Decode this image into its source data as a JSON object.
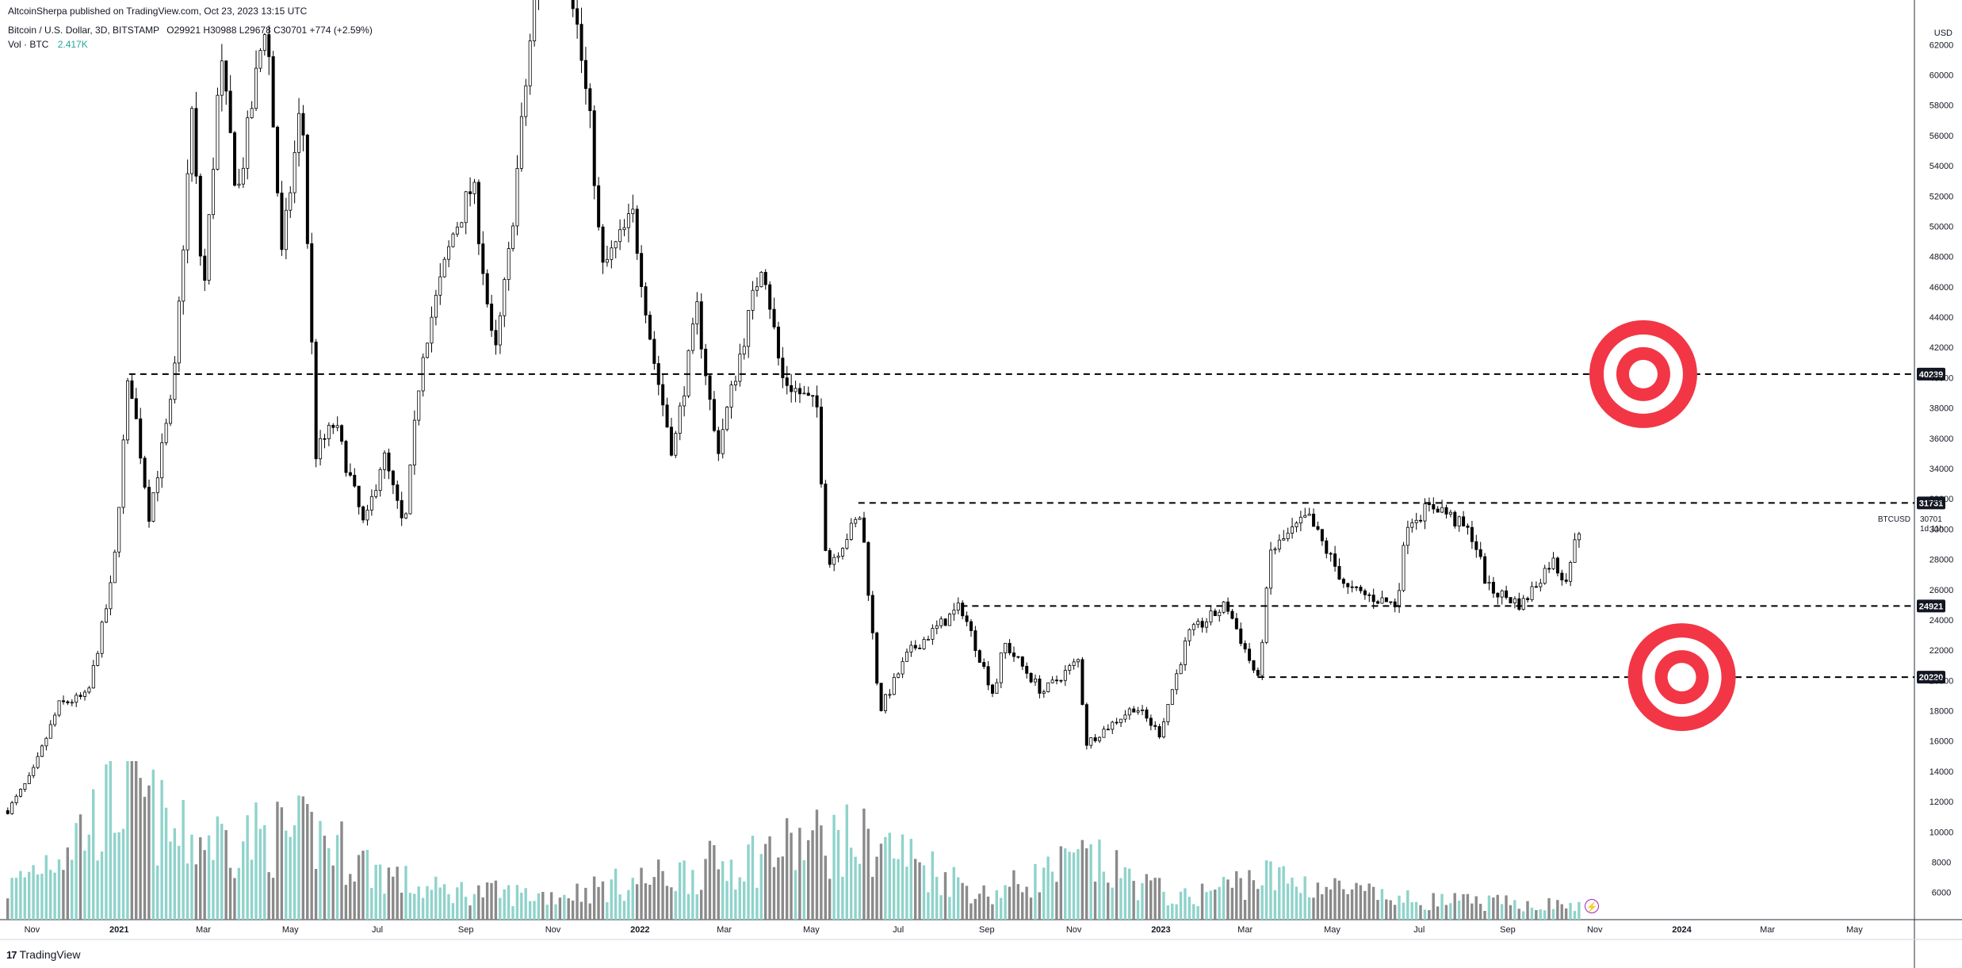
{
  "header": {
    "publisher": "AltcoinSherpa published on TradingView.com, Oct 23, 2023 13:15 UTC",
    "symbol": "Bitcoin / U.S. Dollar, 3D, BITSTAMP",
    "ohlc": "O29921 H30988 L29678 C30701 +774 (+2.59%)",
    "volume_label": "Vol · BTC",
    "volume_value": "2.417K"
  },
  "currency": "USD",
  "footer": {
    "logo": "17",
    "brand": "TradingView"
  },
  "last_price": {
    "symbol": "BTCUSD",
    "price": "30701",
    "countdown": "1d 11h"
  },
  "colors": {
    "candle": "#000000",
    "vol_up": "#8fd3cb",
    "vol_down": "#8a8a8a",
    "target": "#f23645",
    "level_line": "#000000",
    "label_bg": "#131722"
  },
  "chart_data": {
    "type": "candlestick",
    "title": "Bitcoin / U.S. Dollar, 3D, BITSTAMP",
    "interval": "3D",
    "ylim": [
      4200,
      63800
    ],
    "y_ticks": [
      62000,
      60000,
      58000,
      56000,
      54000,
      52000,
      50000,
      48000,
      46000,
      44000,
      42000,
      40000,
      38000,
      36000,
      34000,
      32000,
      30000,
      28000,
      26000,
      24000,
      22000,
      20000,
      18000,
      16000,
      14000,
      12000,
      10000,
      8000,
      6000
    ],
    "x_ticks": [
      "Nov",
      "2021",
      "Mar",
      "May",
      "Jul",
      "Sep",
      "Nov",
      "2022",
      "Mar",
      "May",
      "Jul",
      "Sep",
      "Nov",
      "2023",
      "Mar",
      "May",
      "Jul",
      "Sep",
      "Nov",
      "2024",
      "Mar",
      "May"
    ],
    "x_tick_dates": [
      "2020-11-01",
      "2021-01-01",
      "2021-03-01",
      "2021-05-01",
      "2021-07-01",
      "2021-09-01",
      "2021-11-01",
      "2022-01-01",
      "2022-03-01",
      "2022-05-01",
      "2022-07-01",
      "2022-09-01",
      "2022-11-01",
      "2023-01-01",
      "2023-03-01",
      "2023-05-01",
      "2023-07-01",
      "2023-09-01",
      "2023-11-01",
      "2024-01-01",
      "2024-03-01",
      "2024-05-01"
    ],
    "price_path": [
      [
        "2020-10-15",
        11400
      ],
      [
        "2020-11-01",
        13800
      ],
      [
        "2020-11-20",
        18400
      ],
      [
        "2020-12-10",
        19000
      ],
      [
        "2020-12-28",
        27000
      ],
      [
        "2021-01-08",
        40500
      ],
      [
        "2021-01-22",
        31000
      ],
      [
        "2021-02-08",
        39000
      ],
      [
        "2021-02-21",
        57500
      ],
      [
        "2021-03-01",
        45000
      ],
      [
        "2021-03-13",
        61000
      ],
      [
        "2021-03-25",
        52000
      ],
      [
        "2021-04-14",
        64000
      ],
      [
        "2021-04-25",
        48000
      ],
      [
        "2021-05-09",
        58500
      ],
      [
        "2021-05-19",
        35000
      ],
      [
        "2021-06-01",
        37000
      ],
      [
        "2021-06-22",
        30000
      ],
      [
        "2021-07-05",
        35000
      ],
      [
        "2021-07-20",
        29800
      ],
      [
        "2021-08-01",
        41500
      ],
      [
        "2021-08-23",
        49500
      ],
      [
        "2021-09-06",
        52800
      ],
      [
        "2021-09-21",
        41000
      ],
      [
        "2021-10-01",
        48000
      ],
      [
        "2021-10-20",
        66000
      ],
      [
        "2021-11-10",
        68800
      ],
      [
        "2021-11-28",
        56000
      ],
      [
        "2021-12-05",
        47000
      ],
      [
        "2021-12-27",
        50700
      ],
      [
        "2022-01-10",
        41500
      ],
      [
        "2022-01-24",
        35000
      ],
      [
        "2022-02-10",
        44500
      ],
      [
        "2022-02-24",
        35000
      ],
      [
        "2022-03-28",
        48000
      ],
      [
        "2022-04-10",
        40000
      ],
      [
        "2022-05-05",
        38000
      ],
      [
        "2022-05-12",
        27500
      ],
      [
        "2022-06-05",
        31000
      ],
      [
        "2022-06-18",
        18000
      ],
      [
        "2022-07-08",
        21800
      ],
      [
        "2022-08-14",
        24900
      ],
      [
        "2022-09-06",
        19000
      ],
      [
        "2022-09-13",
        22500
      ],
      [
        "2022-10-10",
        19200
      ],
      [
        "2022-11-05",
        21400
      ],
      [
        "2022-11-09",
        15800
      ],
      [
        "2022-12-14",
        18300
      ],
      [
        "2022-12-31",
        16500
      ],
      [
        "2023-01-20",
        23000
      ],
      [
        "2023-02-16",
        25000
      ],
      [
        "2023-03-10",
        20000
      ],
      [
        "2023-03-19",
        28500
      ],
      [
        "2023-04-14",
        30800
      ],
      [
        "2023-05-12",
        26000
      ],
      [
        "2023-06-15",
        25000
      ],
      [
        "2023-06-23",
        30600
      ],
      [
        "2023-07-13",
        31600
      ],
      [
        "2023-08-08",
        29500
      ],
      [
        "2023-08-18",
        26100
      ],
      [
        "2023-09-11",
        25000
      ],
      [
        "2023-10-02",
        28000
      ],
      [
        "2023-10-11",
        26600
      ],
      [
        "2023-10-23",
        30701
      ]
    ],
    "volume_path": [
      [
        "2020-10-15",
        1.5
      ],
      [
        "2021-01-10",
        6.5
      ],
      [
        "2021-02-10",
        4.0
      ],
      [
        "2021-05-19",
        4.2
      ],
      [
        "2021-06-22",
        2.8
      ],
      [
        "2021-08-01",
        1.5
      ],
      [
        "2021-11-01",
        1.2
      ],
      [
        "2022-01-24",
        2.2
      ],
      [
        "2022-05-12",
        4.0
      ],
      [
        "2022-06-18",
        3.8
      ],
      [
        "2022-09-01",
        1.2
      ],
      [
        "2022-11-09",
        3.0
      ],
      [
        "2023-01-15",
        1.0
      ],
      [
        "2023-03-12",
        2.2
      ],
      [
        "2023-06-15",
        1.0
      ],
      [
        "2023-10-23",
        0.7
      ]
    ],
    "levels": [
      {
        "value": 40239,
        "label": "40239",
        "from": "2021-01-08"
      },
      {
        "value": 31731,
        "label": "31731",
        "from": "2022-06-03"
      },
      {
        "value": 24921,
        "label": "24921",
        "from": "2022-08-14"
      },
      {
        "value": 20220,
        "label": "20220",
        "from": "2023-03-10"
      }
    ],
    "targets": [
      {
        "date": "2023-12-05",
        "price": 40239
      },
      {
        "date": "2024-01-01",
        "price": 20220
      }
    ],
    "last_price": 30701
  }
}
